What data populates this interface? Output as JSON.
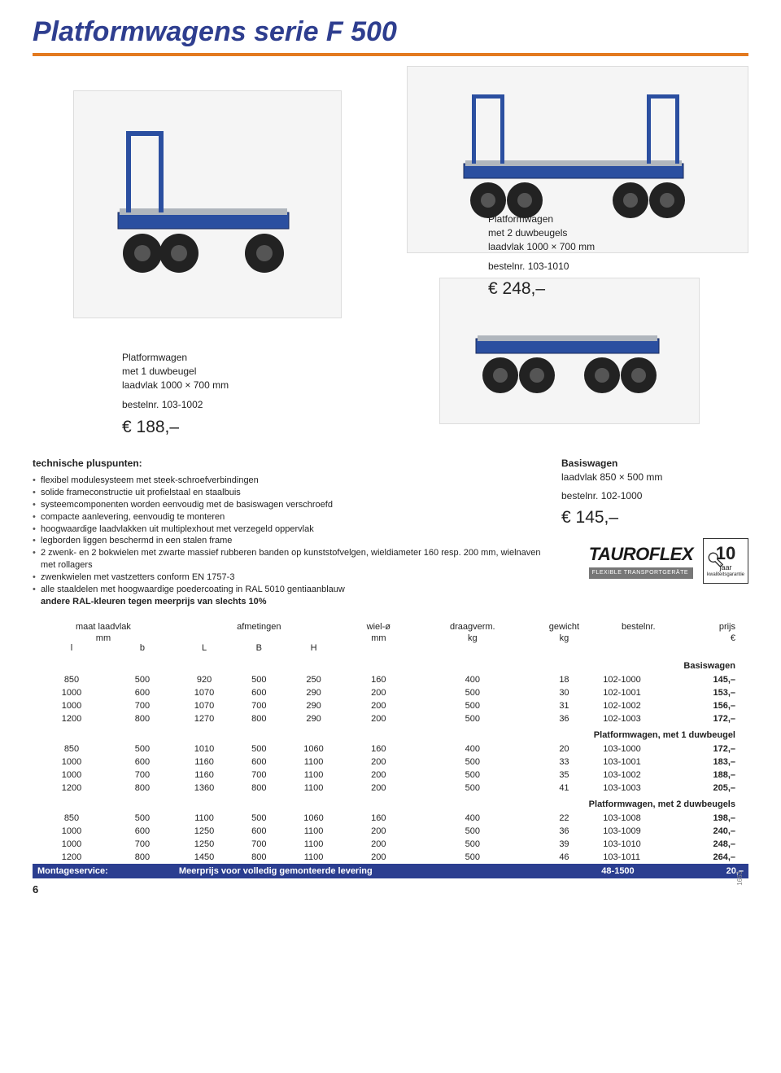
{
  "title": "Platformwagens serie F 500",
  "hero": {
    "product1": {
      "name": "Platformwagen",
      "sub1": "met 1 duwbeugel",
      "sub2": "laadvlak 1000 × 700 mm",
      "order_label": "bestelnr. 103-1002",
      "price": "€ 188,–"
    },
    "product2": {
      "name": "Platformwagen",
      "sub1": "met 2 duwbeugels",
      "sub2": "laadvlak 1000 × 700 mm",
      "order_label": "bestelnr. 103-1010",
      "price": "€ 248,–"
    },
    "product3": {
      "name": "Basiswagen",
      "sub1": "laadvlak 850 × 500 mm",
      "order_label": "bestelnr. 102-1000",
      "price": "€ 145,–"
    }
  },
  "specs": {
    "heading": "technische pluspunten:",
    "items": [
      "flexibel modulesysteem met steek-schroefverbindingen",
      "solide frameconstructie uit profielstaal en staalbuis",
      "systeemcomponenten worden eenvoudig met de basiswagen verschroefd",
      "compacte aanlevering, eenvoudig te monteren",
      "hoogwaardige laadvlakken uit multiplexhout met verzegeld oppervlak",
      "legborden liggen beschermd in een stalen frame",
      "2 zwenk- en 2 bokwielen met zwarte massief rubberen banden op kunststofvelgen, wieldiameter 160 resp. 200 mm, wielnaven met rollagers",
      "zwenkwielen met vastzetters conform EN 1757-3",
      "alle staaldelen met hoogwaardige poedercoating in RAL 5010 gentiaanblauw"
    ],
    "bold_line": "andere RAL-kleuren tegen meerprijs van slechts 10%"
  },
  "brand": {
    "name": "TAUROFLEX",
    "sub": "FLEXIBLE TRANSPORTGERÄTE"
  },
  "warranty": {
    "num": "10",
    "unit": "jaar",
    "sub": "kwaliteitsgarantie"
  },
  "table": {
    "headers": {
      "maat": "maat laadvlak",
      "maat_unit": "mm",
      "afm": "afmetingen",
      "wiel": "wiel-ø",
      "wiel_unit": "mm",
      "draag": "draagverm.",
      "draag_unit": "kg",
      "gewicht": "gewicht",
      "gewicht_unit": "kg",
      "bestel": "bestelnr.",
      "prijs": "prijs",
      "prijs_unit": "€",
      "l": "l",
      "b": "b",
      "L": "L",
      "B": "B",
      "H": "H"
    },
    "sections": [
      {
        "title": "Basiswagen",
        "dark": false,
        "rows": [
          [
            "850",
            "500",
            "920",
            "500",
            "250",
            "160",
            "400",
            "18",
            "102-1000",
            "145,–"
          ],
          [
            "1000",
            "600",
            "1070",
            "600",
            "290",
            "200",
            "500",
            "30",
            "102-1001",
            "153,–"
          ],
          [
            "1000",
            "700",
            "1070",
            "700",
            "290",
            "200",
            "500",
            "31",
            "102-1002",
            "156,–"
          ],
          [
            "1200",
            "800",
            "1270",
            "800",
            "290",
            "200",
            "500",
            "36",
            "102-1003",
            "172,–"
          ]
        ]
      },
      {
        "title": "Platformwagen, met 1 duwbeugel",
        "dark": false,
        "rows": [
          [
            "850",
            "500",
            "1010",
            "500",
            "1060",
            "160",
            "400",
            "20",
            "103-1000",
            "172,–"
          ],
          [
            "1000",
            "600",
            "1160",
            "600",
            "1100",
            "200",
            "500",
            "33",
            "103-1001",
            "183,–"
          ],
          [
            "1000",
            "700",
            "1160",
            "700",
            "1100",
            "200",
            "500",
            "35",
            "103-1002",
            "188,–"
          ],
          [
            "1200",
            "800",
            "1360",
            "800",
            "1100",
            "200",
            "500",
            "41",
            "103-1003",
            "205,–"
          ]
        ]
      },
      {
        "title": "Platformwagen, met 2 duwbeugels",
        "dark": false,
        "rows": [
          [
            "850",
            "500",
            "1100",
            "500",
            "1060",
            "160",
            "400",
            "22",
            "103-1008",
            "198,–"
          ],
          [
            "1000",
            "600",
            "1250",
            "600",
            "1100",
            "200",
            "500",
            "36",
            "103-1009",
            "240,–"
          ],
          [
            "1000",
            "700",
            "1250",
            "700",
            "1100",
            "200",
            "500",
            "39",
            "103-1010",
            "248,–"
          ],
          [
            "1200",
            "800",
            "1450",
            "800",
            "1100",
            "200",
            "500",
            "46",
            "103-1011",
            "264,–"
          ]
        ]
      }
    ],
    "montage": {
      "label": "Montageservice:",
      "desc": "Meerprijs voor volledig gemonteerde levering",
      "code": "48-1500",
      "price": "20,–"
    }
  },
  "page_number": "6",
  "side_code": "1663",
  "colors": {
    "accent": "#e37a20",
    "brand_blue": "#2b3e90"
  }
}
